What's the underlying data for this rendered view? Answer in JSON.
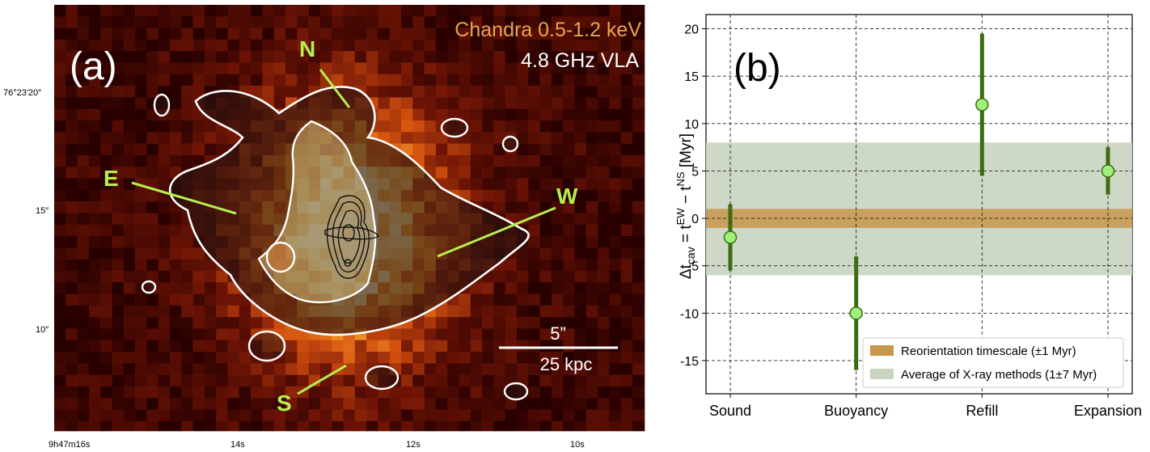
{
  "panel_a": {
    "label": "(a)",
    "legend_xray": "Chandra 0.5-1.2 keV",
    "legend_radio": "4.8 GHz VLA",
    "cavities": [
      "N",
      "E",
      "W",
      "S"
    ],
    "scalebar_top": "5”",
    "scalebar_bottom": "25 kpc",
    "dec_ticks": [
      "76°23′20″",
      "15″",
      "10″"
    ],
    "ra_ticks": [
      "9h47m16s",
      "14s",
      "12s",
      "10s"
    ],
    "colors": {
      "xray_low": "#3a0000",
      "xray_high": "#fff6c8",
      "cavity_label": "#b5ef4e",
      "contour": "#ffffff"
    }
  },
  "chart_data": {
    "type": "scatter",
    "panel_label": "(b)",
    "categories": [
      "Sound",
      "Buoyancy",
      "Refill",
      "Expansion"
    ],
    "values": [
      -2,
      -10,
      12,
      5
    ],
    "errors_low": [
      -5.5,
      -16,
      4.5,
      2.5
    ],
    "errors_high": [
      1.5,
      -4,
      19.5,
      7.5
    ],
    "ylabel": "Δt_cav = t^EW − t^NS [Myr]",
    "ylim": [
      -18.5,
      21.5
    ],
    "yticks": [
      -15,
      -10,
      -5,
      0,
      5,
      10,
      15,
      20
    ],
    "grid": true,
    "bands": [
      {
        "name": "Reorientation timescale (±1 Myr)",
        "center": 0,
        "halfwidth": 1,
        "color": "#c8964a"
      },
      {
        "name": "Average of X-ray methods (1±7 Myr)",
        "center": 1,
        "halfwidth": 7,
        "color": "#c9d4c0"
      }
    ],
    "legend_position": "lower-right",
    "marker_color": "#9ef27a",
    "errorbar_color": "#3d6b12"
  }
}
